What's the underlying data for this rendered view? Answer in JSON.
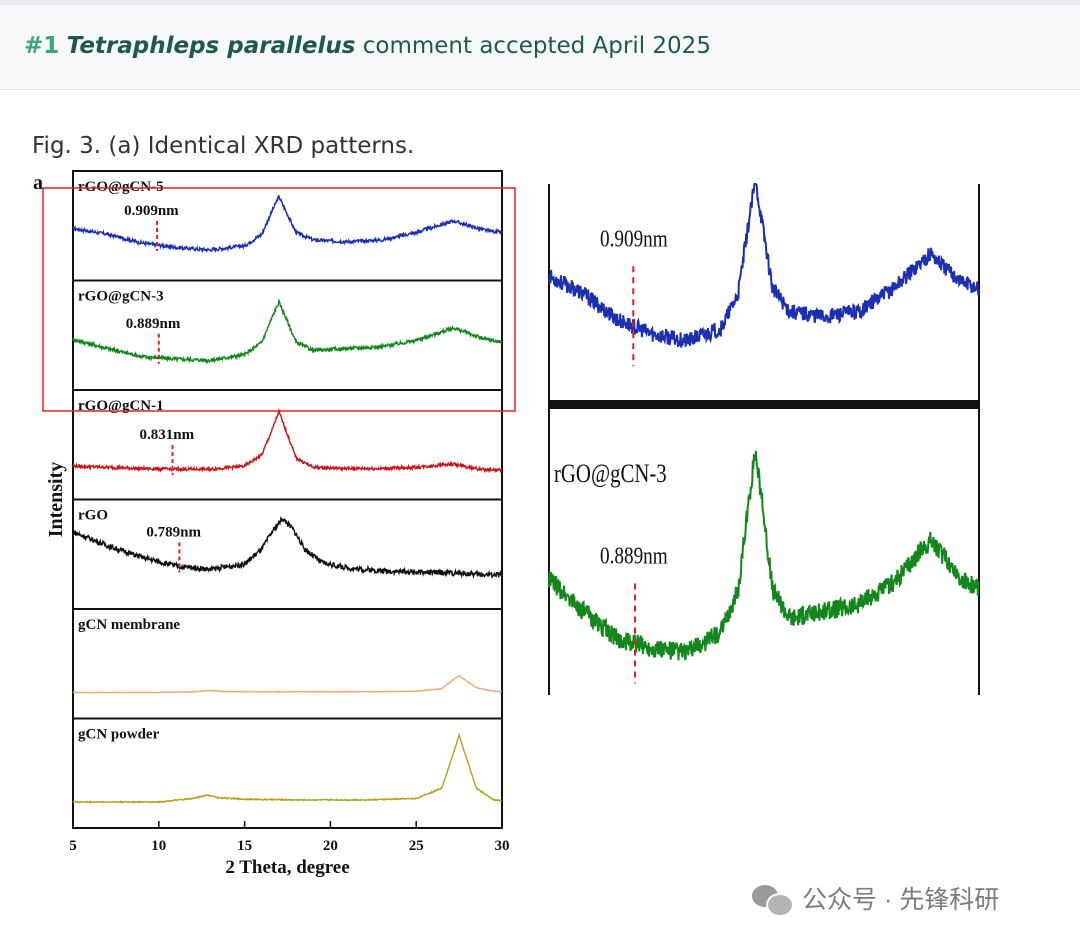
{
  "header": {
    "number": "#1",
    "species": "Tetraphleps parallelus",
    "status": "comment accepted April 2025"
  },
  "caption": "Fig. 3. (a) Identical XRD patterns.",
  "panel_letter": "a",
  "watermark": "公众号 · 先锋科研",
  "colors": {
    "header_text": "#1d5a4a",
    "number": "#3aa676",
    "highlight_box": "#e02020"
  },
  "chart_data": [
    {
      "type": "line",
      "stacked_panels": true,
      "xlabel": "2 Theta, degree",
      "ylabel": "Intensity",
      "xlim": [
        5,
        30
      ],
      "xticks": [
        5,
        10,
        15,
        20,
        25,
        30
      ],
      "panels": [
        {
          "name": "rGO@gCN-5",
          "color": "#1b2fb0",
          "d_spacing": "0.909nm",
          "marker_x": 9.9,
          "x": [
            5,
            7,
            9,
            11,
            13,
            15,
            16,
            16.6,
            17,
            17.4,
            18,
            19,
            21,
            23,
            25,
            26.5,
            27.2,
            28,
            29,
            30
          ],
          "y": [
            0.45,
            0.35,
            0.2,
            0.12,
            0.08,
            0.15,
            0.35,
            0.75,
            1.0,
            0.75,
            0.38,
            0.25,
            0.22,
            0.25,
            0.38,
            0.52,
            0.58,
            0.5,
            0.42,
            0.38
          ]
        },
        {
          "name": "rGO@gCN-3",
          "color": "#14871c",
          "d_spacing": "0.889nm",
          "marker_x": 10.0,
          "x": [
            5,
            7,
            9,
            11,
            13,
            15,
            16,
            16.6,
            17,
            17.4,
            18,
            19,
            21,
            23,
            25,
            26.5,
            27.2,
            28,
            29,
            30
          ],
          "y": [
            0.4,
            0.25,
            0.12,
            0.08,
            0.06,
            0.15,
            0.35,
            0.75,
            1.0,
            0.75,
            0.35,
            0.22,
            0.25,
            0.28,
            0.38,
            0.52,
            0.58,
            0.5,
            0.4,
            0.35
          ]
        },
        {
          "name": "rGO@gCN-1",
          "color": "#c8141c",
          "d_spacing": "0.831nm",
          "marker_x": 10.8,
          "x": [
            5,
            7,
            9,
            11,
            13,
            15,
            16,
            16.6,
            17,
            17.4,
            18,
            19,
            21,
            23,
            25,
            26.5,
            27.2,
            28,
            29,
            30
          ],
          "y": [
            0.12,
            0.1,
            0.08,
            0.07,
            0.07,
            0.12,
            0.3,
            0.7,
            1.0,
            0.7,
            0.25,
            0.1,
            0.08,
            0.08,
            0.1,
            0.14,
            0.15,
            0.1,
            0.06,
            0.05
          ]
        },
        {
          "name": "rGO",
          "color": "#111111",
          "d_spacing": "0.789nm",
          "marker_x": 11.2,
          "x": [
            5,
            7,
            9,
            11,
            13,
            15,
            16,
            16.6,
            17.2,
            17.8,
            18.5,
            19.5,
            21,
            23,
            25,
            27,
            28.5,
            30
          ],
          "y": [
            0.75,
            0.55,
            0.38,
            0.25,
            0.2,
            0.28,
            0.5,
            0.75,
            0.95,
            0.8,
            0.5,
            0.3,
            0.22,
            0.18,
            0.16,
            0.15,
            0.13,
            0.12
          ]
        },
        {
          "name": "gCN membrane",
          "color": "#f3a874",
          "d_spacing": "",
          "marker_x": null,
          "x": [
            5,
            10,
            12,
            13,
            14,
            18,
            22,
            25,
            26.5,
            27.1,
            27.5,
            27.9,
            28.5,
            29.5,
            30
          ],
          "y": [
            0.0,
            0.0,
            0.02,
            0.05,
            0.02,
            0.02,
            0.02,
            0.03,
            0.1,
            0.3,
            0.42,
            0.3,
            0.12,
            0.03,
            0.02
          ]
        },
        {
          "name": "gCN powder",
          "color": "#b2a21e",
          "d_spacing": "",
          "marker_x": null,
          "x": [
            5,
            10,
            12,
            12.8,
            13.5,
            15,
            18,
            22,
            25,
            26.5,
            27.1,
            27.5,
            27.9,
            28.5,
            29.5,
            30
          ],
          "y": [
            0.0,
            0.0,
            0.05,
            0.1,
            0.06,
            0.04,
            0.03,
            0.03,
            0.05,
            0.2,
            0.65,
            0.95,
            0.65,
            0.2,
            0.03,
            0.02
          ]
        }
      ]
    },
    {
      "type": "line",
      "zoom_inset": true,
      "panels": [
        {
          "name": "",
          "color": "#1b2fb0",
          "d_spacing": "0.909nm",
          "marker_x": 9.9,
          "x": [
            5,
            7,
            9,
            11,
            13,
            15,
            16,
            16.6,
            17,
            17.4,
            18,
            19,
            21,
            23,
            25,
            26.5,
            27.2,
            28,
            29,
            30
          ],
          "y": [
            0.45,
            0.35,
            0.2,
            0.12,
            0.08,
            0.15,
            0.35,
            0.75,
            1.0,
            0.75,
            0.38,
            0.25,
            0.22,
            0.25,
            0.38,
            0.52,
            0.58,
            0.5,
            0.42,
            0.38
          ]
        },
        {
          "name": "rGO@gCN-3",
          "color": "#14871c",
          "d_spacing": "0.889nm",
          "marker_x": 10.0,
          "x": [
            5,
            7,
            9,
            11,
            13,
            15,
            16,
            16.6,
            17,
            17.4,
            18,
            19,
            21,
            23,
            25,
            26.5,
            27.2,
            28,
            29,
            30
          ],
          "y": [
            0.4,
            0.25,
            0.12,
            0.08,
            0.06,
            0.15,
            0.35,
            0.75,
            1.0,
            0.75,
            0.35,
            0.22,
            0.25,
            0.28,
            0.38,
            0.52,
            0.58,
            0.5,
            0.4,
            0.35
          ]
        }
      ]
    }
  ]
}
